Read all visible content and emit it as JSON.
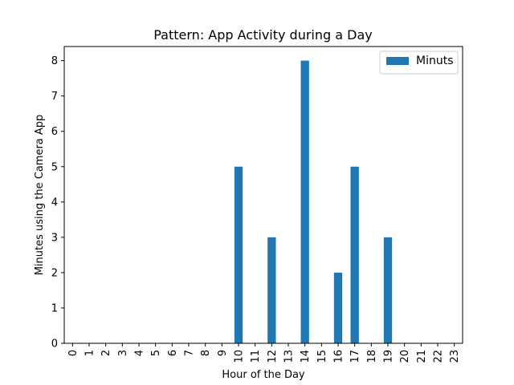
{
  "chart_data": {
    "type": "bar",
    "title": "Pattern: App Activity during a Day",
    "xlabel": "Hour of the Day",
    "ylabel": "Minutes using the Camera App",
    "categories": [
      "0",
      "1",
      "2",
      "3",
      "4",
      "5",
      "6",
      "7",
      "8",
      "9",
      "10",
      "11",
      "12",
      "13",
      "14",
      "15",
      "16",
      "17",
      "18",
      "19",
      "20",
      "21",
      "22",
      "23"
    ],
    "series": [
      {
        "name": "Minuts",
        "values": [
          0,
          0,
          0,
          0,
          0,
          0,
          0,
          0,
          0,
          0,
          5,
          0,
          3,
          0,
          8,
          0,
          2,
          5,
          0,
          3,
          0,
          0,
          0,
          0
        ],
        "color": "#1f77b4"
      }
    ],
    "ylim": [
      0,
      8.4
    ],
    "yticks": [
      0,
      1,
      2,
      3,
      4,
      5,
      6,
      7,
      8
    ],
    "legend_position": "top-right",
    "grid": false
  }
}
